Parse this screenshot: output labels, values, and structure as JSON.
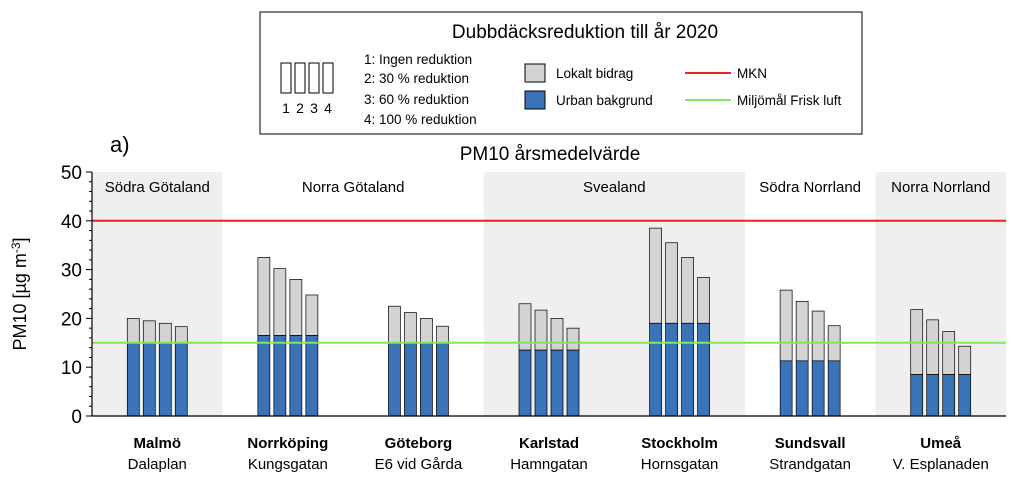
{
  "chart_data": {
    "type": "bar",
    "panel_label": "a)",
    "title": "PM10 årsmedelvärde",
    "ylabel": "PM10 [µg m",
    "ylabel_sup": "-3",
    "ylabel_end": "]",
    "ylim": [
      0,
      50
    ],
    "yticks": [
      "0",
      "10",
      "20",
      "30",
      "40",
      "50"
    ],
    "legend": {
      "title": "Dubbdäcksreduktion till år 2020",
      "scenario_numbers": [
        "1",
        "2",
        "3",
        "4"
      ],
      "scenario_labels": [
        "1: Ingen reduktion",
        "2: 30 % reduktion",
        "3: 60 % reduktion",
        "4: 100 % reduktion"
      ],
      "local_label": "Lokalt bidrag",
      "urban_label": "Urban bakgrund",
      "mkn_label": "MKN",
      "goal_label": "Miljömål Frisk luft"
    },
    "colors": {
      "local": "#d3d3d3",
      "urban": "#3b73b9",
      "mkn": "#e8221f",
      "goal": "#7ee85a",
      "region_shade": "#efefef"
    },
    "reference_lines": {
      "mkn": 40,
      "goal": 15
    },
    "regions": [
      {
        "name": "Södra Götaland",
        "stations": [
          0
        ],
        "shaded": true
      },
      {
        "name": "Norra Götaland",
        "stations": [
          1,
          2
        ],
        "shaded": false
      },
      {
        "name": "Svealand",
        "stations": [
          3,
          4
        ],
        "shaded": true
      },
      {
        "name": "Södra Norrland",
        "stations": [
          5
        ],
        "shaded": false
      },
      {
        "name": "Norra Norrland",
        "stations": [
          6
        ],
        "shaded": true
      }
    ],
    "stations": [
      {
        "city": "Malmö",
        "street": "Dalaplan",
        "urban": [
          15,
          15,
          15,
          15
        ],
        "total": [
          20,
          19.5,
          19,
          18.3
        ]
      },
      {
        "city": "Norrköping",
        "street": "Kungsgatan",
        "urban": [
          16.5,
          16.5,
          16.5,
          16.5
        ],
        "total": [
          32.5,
          30.2,
          28,
          24.8
        ]
      },
      {
        "city": "Göteborg",
        "street": "E6 vid Gårda",
        "urban": [
          15,
          15,
          15,
          15
        ],
        "total": [
          22.5,
          21.2,
          20,
          18.4
        ]
      },
      {
        "city": "Karlstad",
        "street": "Hamngatan",
        "urban": [
          13.5,
          13.5,
          13.5,
          13.5
        ],
        "total": [
          23,
          21.7,
          20,
          18
        ]
      },
      {
        "city": "Stockholm",
        "street": "Hornsgatan",
        "urban": [
          19,
          19,
          19,
          19
        ],
        "total": [
          38.5,
          35.5,
          32.5,
          28.4
        ]
      },
      {
        "city": "Sundsvall",
        "street": "Strandgatan",
        "urban": [
          11.3,
          11.3,
          11.3,
          11.3
        ],
        "total": [
          25.8,
          23.5,
          21.5,
          18.5
        ]
      },
      {
        "city": "Umeå",
        "street": "V. Esplanaden",
        "urban": [
          8.5,
          8.5,
          8.5,
          8.5
        ],
        "total": [
          21.8,
          19.7,
          17.3,
          14.3
        ]
      }
    ]
  }
}
